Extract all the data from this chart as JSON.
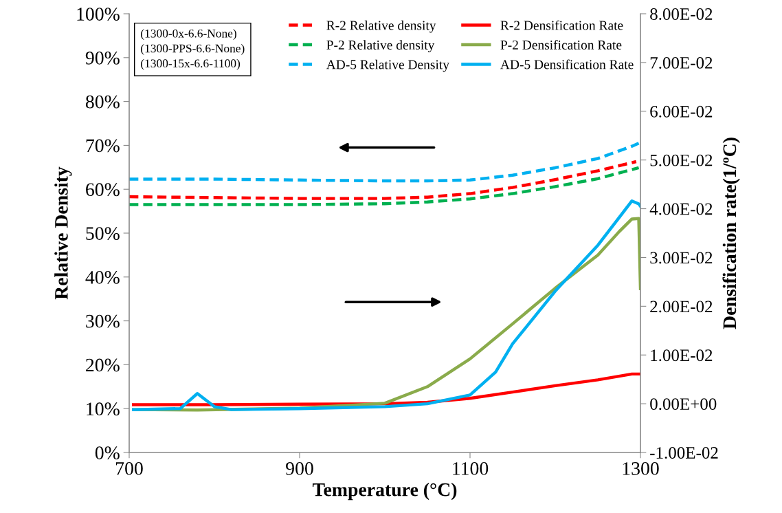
{
  "chart_data": {
    "type": "line",
    "xlabel": "Temperature (°C)",
    "ylabel": "Relative Density",
    "y2label": "Densification rate(1/ºC)",
    "xlim": [
      700,
      1300
    ],
    "xticks": [
      700,
      900,
      1100,
      1300
    ],
    "ylim": [
      0,
      1
    ],
    "yticks": [
      {
        "value": 0,
        "label": "0%"
      },
      {
        "value": 0.1,
        "label": "10%"
      },
      {
        "value": 0.2,
        "label": "20%"
      },
      {
        "value": 0.3,
        "label": "30%"
      },
      {
        "value": 0.4,
        "label": "40%"
      },
      {
        "value": 0.5,
        "label": "50%"
      },
      {
        "value": 0.6,
        "label": "60%"
      },
      {
        "value": 0.7,
        "label": "70%"
      },
      {
        "value": 0.8,
        "label": "80%"
      },
      {
        "value": 0.9,
        "label": "90%"
      },
      {
        "value": 1,
        "label": "100%"
      }
    ],
    "y2lim": [
      -0.01,
      0.08
    ],
    "y2ticks": [
      {
        "value": -0.01,
        "label": "-1.00E-02"
      },
      {
        "value": 0,
        "label": "0.00E+00"
      },
      {
        "value": 0.01,
        "label": "1.00E-02"
      },
      {
        "value": 0.02,
        "label": "2.00E-02"
      },
      {
        "value": 0.03,
        "label": "3.00E-02"
      },
      {
        "value": 0.04,
        "label": "4.00E-02"
      },
      {
        "value": 0.05,
        "label": "5.00E-02"
      },
      {
        "value": 0.06,
        "label": "6.00E-02"
      },
      {
        "value": 0.07,
        "label": "7.00E-02"
      },
      {
        "value": 0.08,
        "label": "8.00E-02"
      }
    ],
    "grid": false,
    "legend": "top right",
    "marker": "none",
    "annotations": [
      "(1300-0x-6.6-None)",
      "(1300-PPS-6.6-None)",
      "(1300-15x-6.6-1100)"
    ],
    "series": [
      {
        "name": "R-2 Relative density",
        "color": "#ff0000",
        "line_style": "dashed",
        "x": [
          700,
          800,
          900,
          1000,
          1050,
          1100,
          1150,
          1200,
          1250,
          1295
        ],
        "values": [
          0.583,
          0.581,
          0.579,
          0.579,
          0.582,
          0.59,
          0.604,
          0.622,
          0.642,
          0.663
        ]
      },
      {
        "name": "R-2 Densification Rate",
        "color": "#ff0000",
        "line_style": "solid",
        "axis": "y2",
        "x": [
          705,
          800,
          900,
          1000,
          1050,
          1100,
          1150,
          1200,
          1250,
          1290,
          1300
        ],
        "values": [
          -0.0002,
          -0.0002,
          -0.0001,
          0.0,
          0.0003,
          0.0011,
          0.0024,
          0.0037,
          0.0049,
          0.0061,
          0.0061
        ]
      },
      {
        "name": "P-2 Relative density",
        "color": "#00b050",
        "line_style": "dashed",
        "x": [
          700,
          800,
          900,
          1000,
          1050,
          1100,
          1150,
          1200,
          1250,
          1298
        ],
        "values": [
          0.565,
          0.565,
          0.565,
          0.567,
          0.571,
          0.578,
          0.59,
          0.606,
          0.624,
          0.649
        ]
      },
      {
        "name": "P-2 Densification Rate",
        "color": "#8aab4b",
        "line_style": "solid",
        "axis": "y2",
        "x": [
          705,
          780,
          900,
          1000,
          1050,
          1100,
          1150,
          1200,
          1250,
          1275,
          1290,
          1298,
          1300
        ],
        "values": [
          -0.0012,
          -0.0013,
          -0.0009,
          0.0001,
          0.0035,
          0.0092,
          0.0164,
          0.0237,
          0.0305,
          0.0353,
          0.0379,
          0.038,
          0.0236
        ]
      },
      {
        "name": "AD-5 Relative Density",
        "color": "#00b0f0",
        "line_style": "dashed",
        "x": [
          700,
          800,
          900,
          1000,
          1050,
          1100,
          1150,
          1200,
          1250,
          1290,
          1298
        ],
        "values": [
          0.623,
          0.623,
          0.621,
          0.619,
          0.619,
          0.621,
          0.632,
          0.649,
          0.67,
          0.698,
          0.705
        ]
      },
      {
        "name": "AD-5 Densification Rate",
        "color": "#00b0f0",
        "line_style": "solid",
        "axis": "y2",
        "x": [
          705,
          760,
          780,
          800,
          820,
          900,
          1000,
          1050,
          1100,
          1130,
          1150,
          1200,
          1250,
          1275,
          1290,
          1298,
          1300
        ],
        "values": [
          -0.0012,
          -0.001,
          0.0021,
          -0.0006,
          -0.0012,
          -0.001,
          -0.0006,
          0.0,
          0.0018,
          0.0065,
          0.0123,
          0.0231,
          0.0325,
          0.0382,
          0.0416,
          0.041,
          0.0405
        ]
      }
    ]
  }
}
